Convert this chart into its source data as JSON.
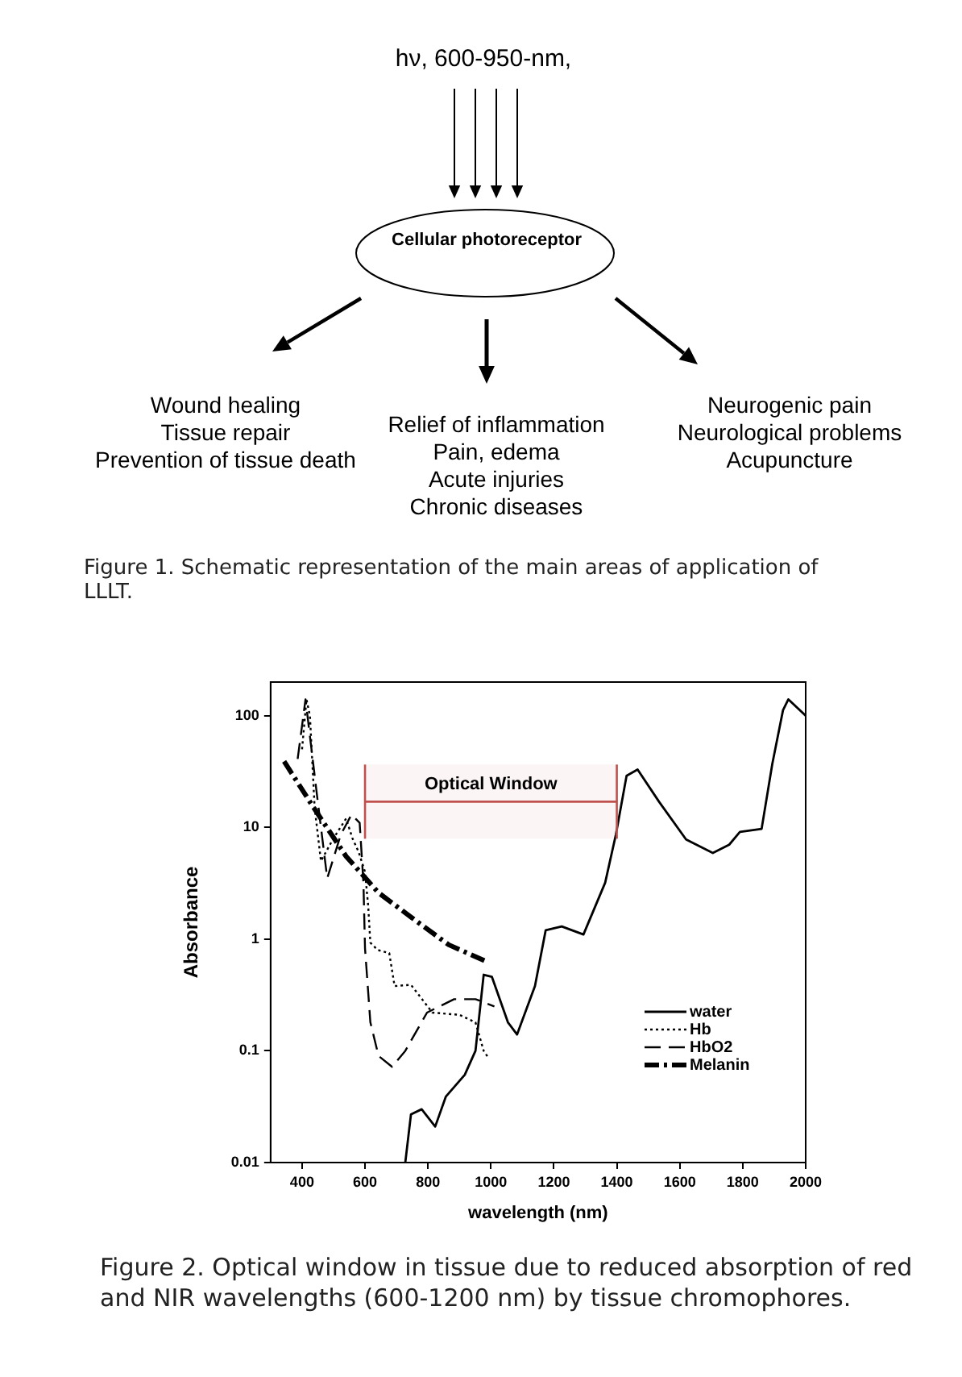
{
  "chart_data": [
    {
      "type": "other",
      "annotations": [
        "hν, 600-950-nm,",
        "Cellular photoreceptor",
        "Wound healing\nTissue repair\nPrevention of tissue death",
        "Relief of inflammation\nPain, edema\nAcute injuries\nChronic diseases",
        "Neurogenic pain\nNeurological problems\nAcupuncture",
        "Figure 1. Schematic representation of the main areas of application of LLLT."
      ]
    },
    {
      "type": "line",
      "xlabel": "wavelength (nm)",
      "ylabel": "Absorbance",
      "log": "y",
      "grid": false,
      "legend": "bottom right",
      "marker": "none",
      "xlim": [
        300,
        2000
      ],
      "xticks": [
        400,
        600,
        800,
        1000,
        1200,
        1400,
        1600,
        1800,
        2000
      ],
      "ylim": [
        0.01,
        200
      ],
      "yticks": [
        0.01,
        0.1,
        1,
        10,
        100
      ],
      "bands": [
        {
          "axis": "x",
          "from": 600,
          "to": 1400,
          "label": "Optical Window",
          "color": "#c0504d"
        }
      ],
      "ref_lines": [
        {
          "axis": "x",
          "value": 600,
          "color": "#c0504d"
        },
        {
          "axis": "x",
          "value": 1400,
          "color": "#c0504d"
        },
        {
          "axis": "y",
          "value": 17,
          "color": "#c0504d"
        }
      ],
      "annotations": [
        "Figure 2. Optical window in tissue due to reduced absorption of red and NIR wavelengths (600-1200 nm) by tissue chromophores."
      ],
      "series": [
        {
          "name": "water",
          "color": "#000000",
          "line_style": "solid",
          "x": [
            728,
            746,
            780,
            823,
            857,
            917,
            951,
            977,
            1003,
            1054,
            1083,
            1140,
            1174,
            1225,
            1294,
            1363,
            1397,
            1431,
            1466,
            1534,
            1620,
            1705,
            1757,
            1791,
            1860,
            1894,
            1928,
            1945,
            2000
          ],
          "values": [
            0.01,
            0.027,
            0.03,
            0.021,
            0.039,
            0.061,
            0.1,
            0.48,
            0.46,
            0.18,
            0.14,
            0.38,
            1.2,
            1.3,
            1.1,
            3.2,
            8.6,
            29,
            33,
            17,
            7.8,
            5.9,
            7,
            9.1,
            9.7,
            37,
            112,
            140,
            100
          ]
        },
        {
          "name": "Hb",
          "color": "#000000",
          "line_style": "dotted",
          "x": [
            400,
            414,
            425,
            440,
            460,
            500,
            540,
            560,
            580,
            600,
            610,
            617,
            640,
            677,
            694,
            746,
            814,
            900,
            951,
            977,
            994
          ],
          "values": [
            50,
            140,
            100,
            15,
            5,
            8,
            12,
            8,
            6,
            4,
            2,
            0.93,
            0.8,
            0.75,
            0.38,
            0.39,
            0.22,
            0.21,
            0.18,
            0.1,
            0.085
          ]
        },
        {
          "name": "HbO2",
          "color": "#000000",
          "line_style": "dashed",
          "x": [
            386,
            411,
            446,
            480,
            523,
            557,
            583,
            595,
            600,
            617,
            643,
            686,
            728,
            797,
            883,
            951,
            1011
          ],
          "values": [
            41,
            140,
            21,
            3.5,
            8.6,
            13,
            11,
            3.2,
            0.83,
            0.18,
            0.09,
            0.072,
            0.1,
            0.22,
            0.29,
            0.29,
            0.25
          ]
        },
        {
          "name": "Melanin",
          "color": "#000000",
          "line_style": "dashdot",
          "x": [
            343,
            437,
            540,
            643,
            763,
            866,
            986
          ],
          "values": [
            39,
            15,
            5.5,
            2.6,
            1.45,
            0.89,
            0.63
          ]
        }
      ]
    }
  ]
}
